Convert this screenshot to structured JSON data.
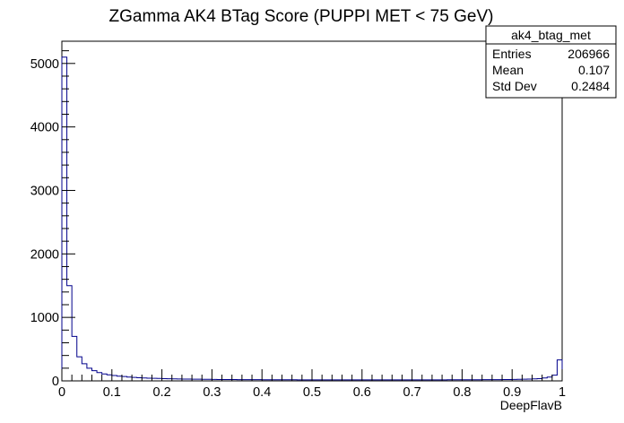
{
  "chart_data": {
    "type": "histogram",
    "title": "ZGamma AK4 BTag Score (PUPPI MET < 75 GeV)",
    "xlabel": "DeepFlavB",
    "ylabel": "",
    "xlim": [
      0,
      1
    ],
    "ylim": [
      0,
      5350
    ],
    "x_ticks": [
      "0",
      "0.1",
      "0.2",
      "0.3",
      "0.4",
      "0.5",
      "0.6",
      "0.7",
      "0.8",
      "0.9",
      "1"
    ],
    "y_ticks": [
      "0",
      "1000",
      "2000",
      "3000",
      "4000",
      "5000"
    ],
    "bin_width": 0.01,
    "values": [
      5100,
      1500,
      700,
      380,
      270,
      200,
      160,
      130,
      110,
      95,
      85,
      75,
      68,
      60,
      55,
      50,
      46,
      42,
      40,
      38,
      36,
      34,
      32,
      30,
      29,
      28,
      27,
      26,
      25,
      24,
      23,
      22,
      22,
      21,
      21,
      20,
      20,
      19,
      19,
      19,
      18,
      18,
      18,
      17,
      17,
      17,
      17,
      16,
      16,
      16,
      16,
      16,
      16,
      16,
      16,
      16,
      16,
      16,
      16,
      16,
      16,
      16,
      16,
      16,
      16,
      16,
      16,
      16,
      16,
      16,
      16,
      16,
      16,
      16,
      16,
      16,
      16,
      17,
      17,
      17,
      17,
      18,
      18,
      18,
      19,
      19,
      20,
      20,
      21,
      22,
      23,
      25,
      27,
      29,
      32,
      36,
      45,
      60,
      90,
      330
    ],
    "grid": false,
    "legend": "none",
    "colors": {
      "line": "#00008b",
      "frame": "#000000"
    },
    "stats_box": {
      "name": "ak4_btag_met",
      "rows": [
        {
          "label": "Entries",
          "value": "206966"
        },
        {
          "label": "Mean",
          "value": "0.107"
        },
        {
          "label": "Std Dev",
          "value": "0.2484"
        }
      ]
    }
  }
}
